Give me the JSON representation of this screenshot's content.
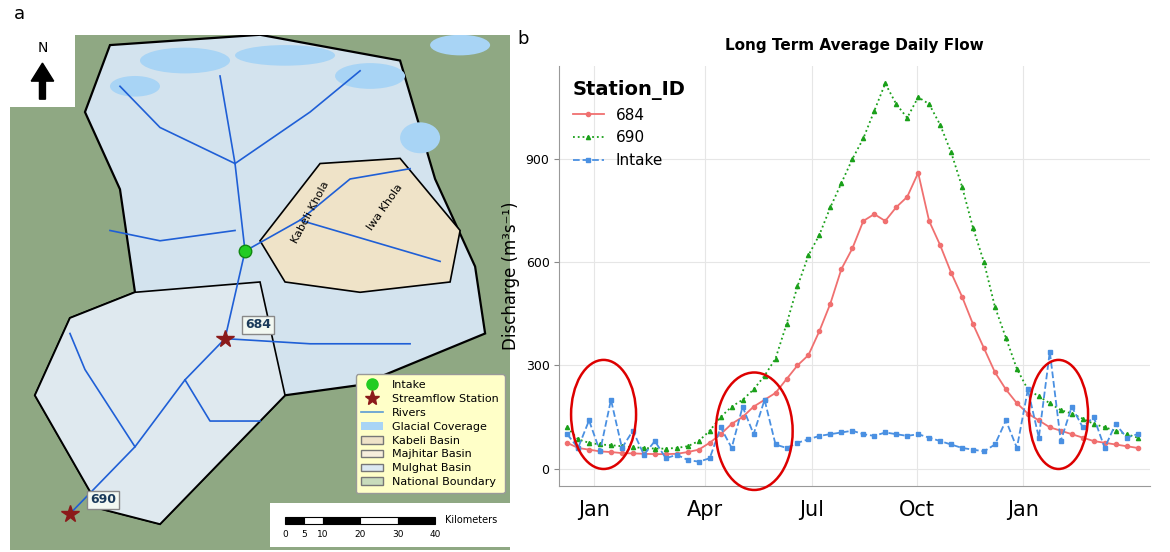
{
  "map": {
    "panel_label": "a",
    "north": "N",
    "rivers_named": [
      "Kabeli Khola",
      "Iwa Khola"
    ],
    "stations": [
      "684",
      "690"
    ],
    "legend_items": [
      "Intake",
      "Streamflow Station",
      "Rivers",
      "Glacial Coverage",
      "Kabeli Basin",
      "Majhitar Basin",
      "Mulghat Basin",
      "National Boundary"
    ],
    "scale_bar": {
      "unit": "Kilometers",
      "ticks": [
        0,
        5,
        10,
        20,
        30,
        40
      ]
    }
  },
  "chart_data": {
    "type": "line",
    "panel_label": "b",
    "title": "Long Term Average Daily Flow",
    "y_label": "Discharge (m³s⁻¹)",
    "legend_title": "Station_ID",
    "legend": "upper left",
    "grid": true,
    "x": [
      1,
      8,
      15,
      22,
      29,
      36,
      43,
      50,
      57,
      64,
      71,
      78,
      85,
      92,
      99,
      106,
      113,
      120,
      127,
      134,
      141,
      148,
      155,
      162,
      169,
      176,
      183,
      190,
      197,
      204,
      211,
      218,
      225,
      232,
      239,
      246,
      253,
      260,
      267,
      274,
      281,
      288,
      295,
      302,
      309,
      316,
      323,
      330,
      337,
      344,
      351,
      358,
      365
    ],
    "xlim": [
      -4,
      373
    ],
    "xticks": [
      {
        "value": 18,
        "label": "Jan"
      },
      {
        "value": 89,
        "label": "Apr"
      },
      {
        "value": 157,
        "label": "Jul"
      },
      {
        "value": 224,
        "label": "Oct"
      },
      {
        "value": 292,
        "label": "Jan"
      }
    ],
    "ylim": [
      -50,
      1170
    ],
    "yticks": [
      0,
      300,
      600,
      900
    ],
    "series": [
      {
        "name": "684",
        "color": "#f07070",
        "marker": "circle",
        "line_style": "solid",
        "values": [
          75,
          60,
          55,
          50,
          48,
          45,
          44,
          43,
          42,
          42,
          43,
          48,
          55,
          75,
          100,
          130,
          150,
          180,
          200,
          220,
          260,
          300,
          330,
          400,
          480,
          580,
          640,
          720,
          740,
          720,
          760,
          790,
          860,
          720,
          650,
          570,
          500,
          420,
          350,
          280,
          230,
          190,
          160,
          140,
          120,
          110,
          100,
          90,
          80,
          75,
          70,
          65,
          60
        ]
      },
      {
        "name": "690",
        "color": "#1aa01a",
        "marker": "triangle",
        "line_style": "dotted",
        "values": [
          120,
          85,
          75,
          70,
          68,
          65,
          62,
          60,
          58,
          58,
          60,
          65,
          80,
          110,
          150,
          180,
          200,
          230,
          270,
          320,
          420,
          530,
          620,
          680,
          760,
          830,
          900,
          960,
          1040,
          1120,
          1060,
          1020,
          1080,
          1060,
          1000,
          920,
          820,
          700,
          600,
          470,
          380,
          290,
          230,
          210,
          190,
          170,
          160,
          145,
          130,
          120,
          110,
          100,
          90
        ]
      },
      {
        "name": "Intake",
        "color": "#4a90e2",
        "marker": "square",
        "line_style": "dashed",
        "values": [
          100,
          60,
          140,
          50,
          200,
          60,
          110,
          40,
          80,
          30,
          40,
          25,
          20,
          30,
          120,
          60,
          180,
          100,
          200,
          70,
          60,
          75,
          85,
          95,
          100,
          105,
          110,
          100,
          95,
          105,
          100,
          95,
          100,
          90,
          80,
          70,
          60,
          55,
          50,
          70,
          140,
          60,
          230,
          90,
          340,
          80,
          180,
          120,
          150,
          60,
          130,
          90,
          100
        ]
      }
    ]
  }
}
